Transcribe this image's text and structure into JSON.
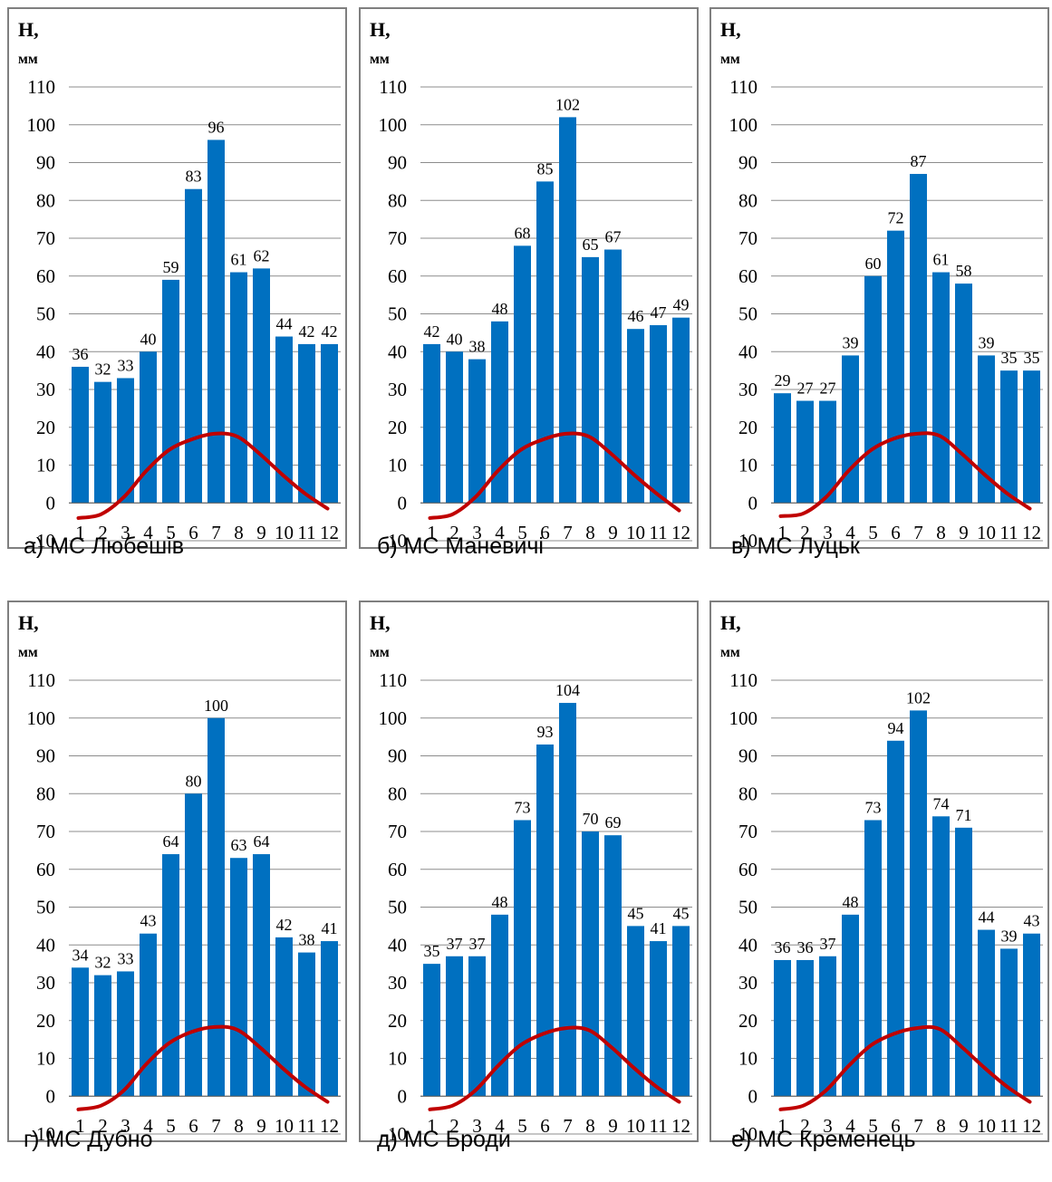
{
  "colors": {
    "bar": "#0070c0",
    "line": "#c00000",
    "grid": "#8c8c8c",
    "border": "#7f7f7f"
  },
  "ylabel_line1": "Н,",
  "ylabel_line2": "мм",
  "chart_data": [
    {
      "type": "bar",
      "caption": "а) МС Любешів",
      "ylabel": "Н, мм",
      "categories": [
        "1",
        "2",
        "3",
        "4",
        "5",
        "6",
        "7",
        "8",
        "9",
        "10",
        "11",
        "12"
      ],
      "ylim": [
        -10,
        110
      ],
      "yticks": [
        -10,
        0,
        10,
        20,
        30,
        40,
        50,
        60,
        70,
        80,
        90,
        100,
        110
      ],
      "grid": true,
      "series": [
        {
          "type": "bar",
          "values": [
            36,
            32,
            33,
            40,
            59,
            83,
            96,
            61,
            62,
            44,
            42,
            42
          ],
          "data_labels": [
            "36",
            "32",
            "33",
            "40",
            "59",
            "83",
            "96",
            "61",
            "62",
            "44",
            "42",
            "42"
          ]
        },
        {
          "type": "line",
          "values": [
            -4.0,
            -3.0,
            1.5,
            8.5,
            14.0,
            16.8,
            18.3,
            17.6,
            13.0,
            7.5,
            2.5,
            -1.5
          ]
        }
      ]
    },
    {
      "type": "bar",
      "caption": "б) МС Маневичі",
      "ylabel": "Н, мм",
      "categories": [
        "1",
        "2",
        "3",
        "4",
        "5",
        "6",
        "7",
        "8",
        "9",
        "10",
        "11",
        "12"
      ],
      "ylim": [
        -10,
        110
      ],
      "yticks": [
        -10,
        0,
        10,
        20,
        30,
        40,
        50,
        60,
        70,
        80,
        90,
        100,
        110
      ],
      "grid": true,
      "series": [
        {
          "type": "bar",
          "values": [
            42,
            40,
            38,
            48,
            68,
            85,
            102,
            65,
            67,
            46,
            47,
            49
          ],
          "data_labels": [
            "42",
            "40",
            "38",
            "48",
            "68",
            "85",
            "102",
            "65",
            "67",
            "46",
            "47",
            "49"
          ]
        },
        {
          "type": "line",
          "values": [
            -4.0,
            -3.0,
            1.5,
            8.5,
            14.0,
            16.8,
            18.3,
            17.6,
            13.0,
            7.5,
            2.5,
            -2.0
          ]
        }
      ]
    },
    {
      "type": "bar",
      "caption": "в) МС Луцьк",
      "ylabel": "Н, мм",
      "categories": [
        "1",
        "2",
        "3",
        "4",
        "5",
        "6",
        "7",
        "8",
        "9",
        "10",
        "11",
        "12"
      ],
      "ylim": [
        -10,
        110
      ],
      "yticks": [
        -10,
        0,
        10,
        20,
        30,
        40,
        50,
        60,
        70,
        80,
        90,
        100,
        110
      ],
      "grid": true,
      "series": [
        {
          "type": "bar",
          "values": [
            29,
            27,
            27,
            39,
            60,
            72,
            87,
            61,
            58,
            39,
            35,
            35
          ],
          "data_labels": [
            "29",
            "27",
            "27",
            "39",
            "60",
            "72",
            "87",
            "61",
            "58",
            "39",
            "35",
            "35"
          ]
        },
        {
          "type": "line",
          "values": [
            -3.5,
            -2.8,
            1.5,
            8.5,
            14.0,
            17.0,
            18.3,
            17.8,
            13.0,
            7.5,
            2.5,
            -1.5
          ]
        }
      ]
    },
    {
      "type": "bar",
      "caption": "г) МС Дубно",
      "ylabel": "Н, мм",
      "categories": [
        "1",
        "2",
        "3",
        "4",
        "5",
        "6",
        "7",
        "8",
        "9",
        "10",
        "11",
        "12"
      ],
      "ylim": [
        -10,
        110
      ],
      "yticks": [
        -10,
        0,
        10,
        20,
        30,
        40,
        50,
        60,
        70,
        80,
        90,
        100,
        110
      ],
      "grid": true,
      "series": [
        {
          "type": "bar",
          "values": [
            34,
            32,
            33,
            43,
            64,
            80,
            100,
            63,
            64,
            42,
            38,
            41
          ],
          "data_labels": [
            "34",
            "32",
            "33",
            "43",
            "64",
            "80",
            "100",
            "63",
            "64",
            "42",
            "38",
            "41"
          ]
        },
        {
          "type": "line",
          "values": [
            -3.5,
            -2.5,
            1.5,
            8.5,
            14.0,
            17.0,
            18.3,
            17.6,
            13.0,
            7.5,
            2.5,
            -1.5
          ]
        }
      ]
    },
    {
      "type": "bar",
      "caption": "д) МС Броди",
      "ylabel": "Н, мм",
      "categories": [
        "1",
        "2",
        "3",
        "4",
        "5",
        "6",
        "7",
        "8",
        "9",
        "10",
        "11",
        "12"
      ],
      "ylim": [
        -10,
        110
      ],
      "yticks": [
        -10,
        0,
        10,
        20,
        30,
        40,
        50,
        60,
        70,
        80,
        90,
        100,
        110
      ],
      "grid": true,
      "series": [
        {
          "type": "bar",
          "values": [
            35,
            37,
            37,
            48,
            73,
            93,
            104,
            70,
            69,
            45,
            41,
            45
          ],
          "data_labels": [
            "35",
            "37",
            "37",
            "48",
            "73",
            "93",
            "104",
            "70",
            "69",
            "45",
            "41",
            "45"
          ]
        },
        {
          "type": "line",
          "values": [
            -3.5,
            -2.5,
            1.5,
            8.0,
            13.5,
            16.5,
            18.0,
            17.5,
            13.0,
            7.5,
            2.5,
            -1.5
          ]
        }
      ]
    },
    {
      "type": "bar",
      "caption": "е) МС Кременець",
      "ylabel": "Н, мм",
      "categories": [
        "1",
        "2",
        "3",
        "4",
        "5",
        "6",
        "7",
        "8",
        "9",
        "10",
        "11",
        "12"
      ],
      "ylim": [
        -10,
        110
      ],
      "yticks": [
        -10,
        0,
        10,
        20,
        30,
        40,
        50,
        60,
        70,
        80,
        90,
        100,
        110
      ],
      "grid": true,
      "series": [
        {
          "type": "bar",
          "values": [
            36,
            36,
            37,
            48,
            73,
            94,
            102,
            74,
            71,
            44,
            39,
            43
          ],
          "data_labels": [
            "36",
            "36",
            "37",
            "48",
            "73",
            "94",
            "102",
            "74",
            "71",
            "44",
            "39",
            "43"
          ]
        },
        {
          "type": "line",
          "values": [
            -3.5,
            -2.5,
            1.5,
            8.0,
            13.5,
            16.5,
            18.0,
            17.8,
            13.0,
            7.5,
            2.5,
            -1.5
          ]
        }
      ]
    }
  ]
}
